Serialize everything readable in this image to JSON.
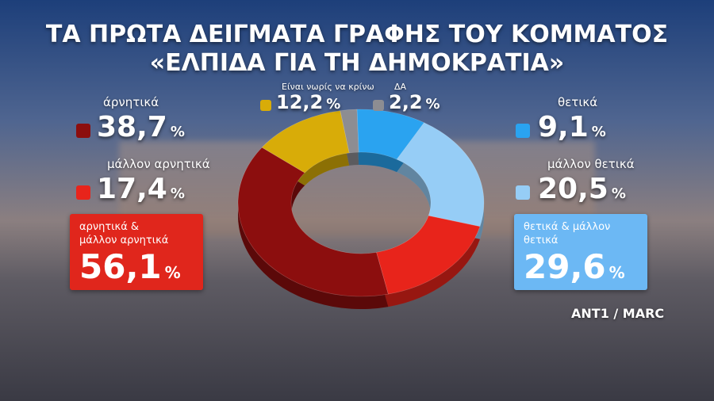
{
  "chart_data": {
    "type": "donut",
    "title": "ΤΑ ΠΡΩΤΑ ΔΕΙΓΜΑΤΑ ΓΡΑΦΗΣ ΤΟΥ ΚΟΜΜΑΤΟΣ",
    "subtitle": "«ΕΛΠΙΔΑ ΓΙΑ ΤΗ ΔΗΜΟΚΡΑΤΙΑ»",
    "categories": [
      "άρνητικά",
      "μάλλον αρνητικά",
      "Είναι νωρίς να κρίνω",
      "ΔΑ",
      "θετικά",
      "μάλλον θετικά"
    ],
    "values": [
      38.7,
      17.4,
      12.2,
      2.2,
      9.1,
      20.5
    ],
    "value_labels": [
      "38,7",
      "17,4",
      "12,2",
      "2,2",
      "9,1",
      "20,5"
    ],
    "unit": "%",
    "colors": [
      "#8c0e0e",
      "#e8241b",
      "#d8ac08",
      "#8d8d92",
      "#2aa3f0",
      "#96cdf6"
    ],
    "totals": [
      {
        "label": "αρνητικά & μάλλον αρνητικά",
        "value": 56.1,
        "value_label": "56,1",
        "color": "#e0261c"
      },
      {
        "label": "θετικά & μάλλον θετικά",
        "value": 29.6,
        "value_label": "29,6",
        "color": "#6cb8f4"
      }
    ],
    "source": "ANT1 / MARC"
  }
}
